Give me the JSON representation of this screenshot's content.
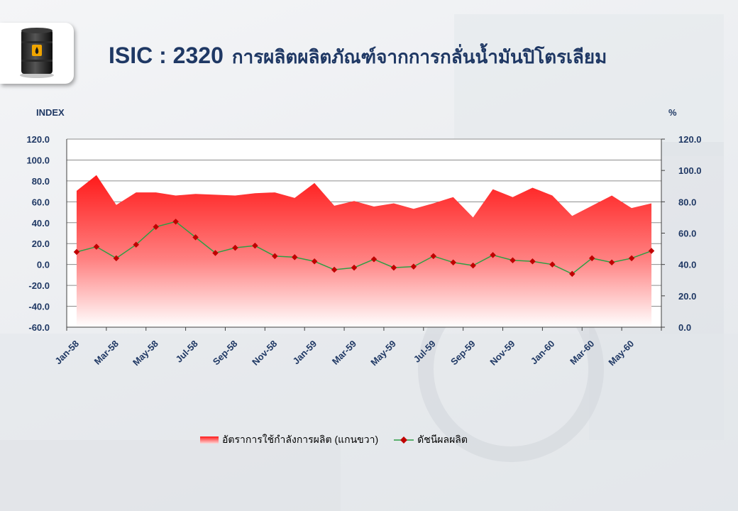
{
  "header": {
    "code": "ISIC : 2320",
    "name": "การผลิตผลิตภัณฑ์จากการกลั่นน้ำมันปิโตรเลียม",
    "logo_icon": "oil-barrel-icon"
  },
  "colors": {
    "title": "#1f3864",
    "area_top": "#ff1a1a",
    "area_bottom": "#ffe0e0",
    "line": "#2e9e44",
    "marker": "#c00000",
    "grid": "#8c8c8c"
  },
  "chart_data": {
    "type": "line",
    "x": [
      "Jan-58",
      "Feb-58",
      "Mar-58",
      "Apr-58",
      "May-58",
      "Jun-58",
      "Jul-58",
      "Aug-58",
      "Sep-58",
      "Oct-58",
      "Nov-58",
      "Dec-58",
      "Jan-59",
      "Feb-59",
      "Mar-59",
      "Apr-59",
      "May-59",
      "Jun-59",
      "Jul-59",
      "Aug-59",
      "Sep-59",
      "Oct-59",
      "Nov-59",
      "Dec-59",
      "Jan-60",
      "Feb-60",
      "Mar-60",
      "Apr-60",
      "May-60",
      "Jun-60"
    ],
    "x_tick_labels": [
      "Jan-58",
      "Mar-58",
      "May-58",
      "Jul-58",
      "Sep-58",
      "Nov-58",
      "Jan-59",
      "Mar-59",
      "May-59",
      "Jul-59",
      "Sep-59",
      "Nov-59",
      "Jan-60",
      "Mar-60",
      "May-60"
    ],
    "y_left_label": "INDEX",
    "y_right_label": "%",
    "y_left_lim": [
      -60,
      120
    ],
    "y_left_ticks": [
      "120.0",
      "100.0",
      "80.0",
      "60.0",
      "40.0",
      "20.0",
      "0.0",
      "-20.0",
      "-40.0",
      "-60.0"
    ],
    "y_right_lim": [
      0,
      120
    ],
    "y_right_ticks": [
      "120.0",
      "100.0",
      "80.0",
      "60.0",
      "40.0",
      "20.0",
      "0.0"
    ],
    "grid": true,
    "legend_position": "bottom",
    "series": [
      {
        "name": "อัตราการใช้กำลังการผลิต (แกนขวา)",
        "type": "area",
        "axis": "right",
        "values": [
          87,
          97,
          78,
          86,
          86,
          84,
          85,
          84.5,
          84,
          85.5,
          86,
          82.5,
          92,
          77.5,
          80.5,
          77,
          79,
          75.5,
          79,
          83,
          70,
          88,
          83,
          89,
          84,
          71,
          77.5,
          84,
          76,
          79
        ]
      },
      {
        "name": "ดัชนีผลผลิต",
        "type": "line",
        "axis": "left",
        "values": [
          12,
          17,
          6,
          19,
          36,
          41,
          26,
          11,
          16,
          18,
          8,
          7,
          3,
          -5,
          -3,
          5,
          -3,
          -2,
          8,
          2,
          -1,
          9,
          4,
          3,
          0,
          -9,
          6,
          2,
          6,
          13
        ]
      }
    ]
  }
}
